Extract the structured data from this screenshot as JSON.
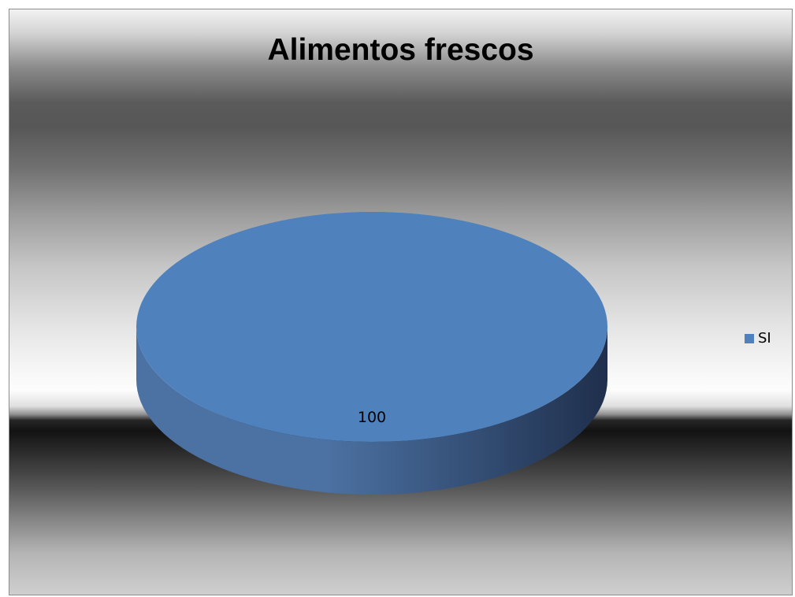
{
  "chart_data": {
    "type": "pie",
    "title": "Alimentos frescos",
    "categories": [
      "SI"
    ],
    "values": [
      100
    ],
    "data_labels": [
      "100"
    ],
    "legend": {
      "placement": "right",
      "entries": [
        "SI"
      ]
    },
    "style": "3d",
    "colors": {
      "slice": "#4F81BD",
      "slice_side_light": "#4C72A3",
      "slice_side_dark": "#1F2F4C"
    }
  }
}
